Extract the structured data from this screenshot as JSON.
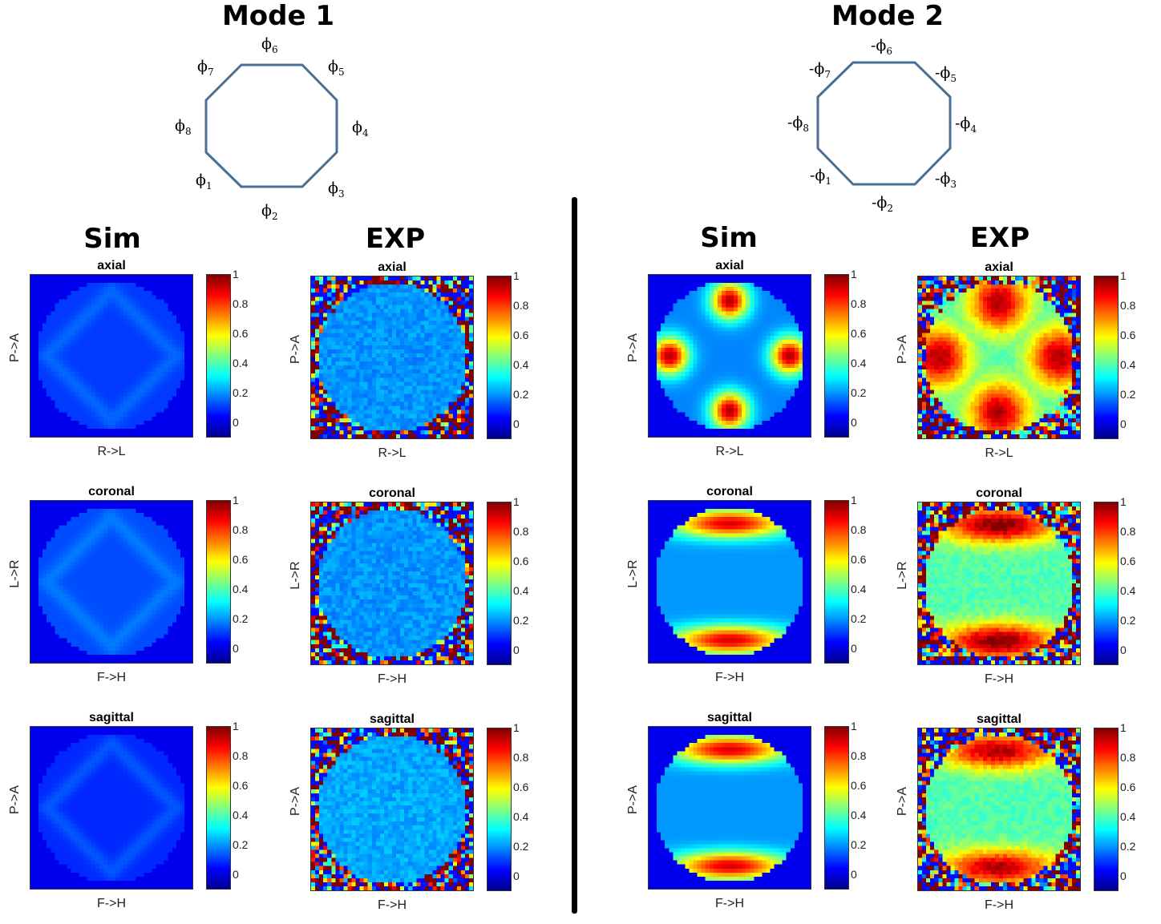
{
  "modes": [
    {
      "title": "Mode 1",
      "octagon_labels": [
        "ϕ6",
        "ϕ5",
        "ϕ4",
        "ϕ3",
        "ϕ2",
        "ϕ1",
        "ϕ8",
        "ϕ7"
      ],
      "sim_title": "Sim",
      "exp_title": "EXP"
    },
    {
      "title": "Mode 2",
      "octagon_labels": [
        "-ϕ6",
        "-ϕ5",
        "-ϕ4",
        "-ϕ3",
        "-ϕ2",
        "-ϕ1",
        "-ϕ8",
        "-ϕ7"
      ],
      "sim_title": "Sim",
      "exp_title": "EXP"
    }
  ],
  "octagon_stroke_color": "#4a6f94",
  "colormap": "jet",
  "chart_data": [
    {
      "type": "heatmap",
      "id": "m1-sim-axial",
      "title": "axial",
      "xlabel": "R->L",
      "ylabel": "P->A",
      "clim": [
        -0.1,
        1
      ],
      "colorbar_ticks": [
        "1",
        "0.8",
        "0.6",
        "0.4",
        "0.2",
        "0"
      ],
      "pattern": "uniform-low",
      "level": 0.1
    },
    {
      "type": "heatmap",
      "id": "m1-exp-axial",
      "title": "axial",
      "xlabel": "R->L",
      "ylabel": "P->A",
      "clim": [
        -0.1,
        1
      ],
      "colorbar_ticks": [
        "1",
        "0.8",
        "0.6",
        "0.4",
        "0.2",
        "0"
      ],
      "pattern": "uniform-noisy",
      "level": 0.2
    },
    {
      "type": "heatmap",
      "id": "m2-sim-axial",
      "title": "axial",
      "xlabel": "R->L",
      "ylabel": "P->A",
      "clim": [
        -0.1,
        1
      ],
      "colorbar_ticks": [
        "1",
        "0.8",
        "0.6",
        "0.4",
        "0.2",
        "0"
      ],
      "pattern": "four-lobes",
      "level": 0.95
    },
    {
      "type": "heatmap",
      "id": "m2-exp-axial",
      "title": "axial",
      "xlabel": "R->L",
      "ylabel": "P->A",
      "clim": [
        -0.1,
        1
      ],
      "colorbar_ticks": [
        "1",
        "0.8",
        "0.6",
        "0.4",
        "0.2",
        "0"
      ],
      "pattern": "four-lobes-noisy",
      "level": 0.95
    },
    {
      "type": "heatmap",
      "id": "m1-sim-coronal",
      "title": "coronal",
      "xlabel": "F->H",
      "ylabel": "L->R",
      "clim": [
        -0.1,
        1
      ],
      "colorbar_ticks": [
        "1",
        "0.8",
        "0.6",
        "0.4",
        "0.2",
        "0"
      ],
      "pattern": "uniform-low",
      "level": 0.12
    },
    {
      "type": "heatmap",
      "id": "m1-exp-coronal",
      "title": "coronal",
      "xlabel": "F->H",
      "ylabel": "L->R",
      "clim": [
        -0.1,
        1
      ],
      "colorbar_ticks": [
        "1",
        "0.8",
        "0.6",
        "0.4",
        "0.2",
        "0"
      ],
      "pattern": "uniform-noisy",
      "level": 0.2
    },
    {
      "type": "heatmap",
      "id": "m2-sim-coronal",
      "title": "coronal",
      "xlabel": "F->H",
      "ylabel": "L->R",
      "clim": [
        -0.1,
        1
      ],
      "colorbar_ticks": [
        "1",
        "0.8",
        "0.6",
        "0.4",
        "0.2",
        "0"
      ],
      "pattern": "two-bands",
      "level": 0.9
    },
    {
      "type": "heatmap",
      "id": "m2-exp-coronal",
      "title": "coronal",
      "xlabel": "F->H",
      "ylabel": "L->R",
      "clim": [
        -0.1,
        1
      ],
      "colorbar_ticks": [
        "1",
        "0.8",
        "0.6",
        "0.4",
        "0.2",
        "0"
      ],
      "pattern": "two-bands-noisy",
      "level": 1.0
    },
    {
      "type": "heatmap",
      "id": "m1-sim-sagittal",
      "title": "sagittal",
      "xlabel": "F->H",
      "ylabel": "P->A",
      "clim": [
        -0.1,
        1
      ],
      "colorbar_ticks": [
        "1",
        "0.8",
        "0.6",
        "0.4",
        "0.2",
        "0"
      ],
      "pattern": "uniform-low",
      "level": 0.08
    },
    {
      "type": "heatmap",
      "id": "m1-exp-sagittal",
      "title": "sagittal",
      "xlabel": "F->H",
      "ylabel": "P->A",
      "clim": [
        -0.1,
        1
      ],
      "colorbar_ticks": [
        "1",
        "0.8",
        "0.6",
        "0.4",
        "0.2",
        "0"
      ],
      "pattern": "uniform-noisy",
      "level": 0.22
    },
    {
      "type": "heatmap",
      "id": "m2-sim-sagittal",
      "title": "sagittal",
      "xlabel": "F->H",
      "ylabel": "P->A",
      "clim": [
        -0.1,
        1
      ],
      "colorbar_ticks": [
        "1",
        "0.8",
        "0.6",
        "0.4",
        "0.2",
        "0"
      ],
      "pattern": "two-bands",
      "level": 0.9
    },
    {
      "type": "heatmap",
      "id": "m2-exp-sagittal",
      "title": "sagittal",
      "xlabel": "F->H",
      "ylabel": "P->A",
      "clim": [
        -0.1,
        1
      ],
      "colorbar_ticks": [
        "1",
        "0.8",
        "0.6",
        "0.4",
        "0.2",
        "0"
      ],
      "pattern": "two-bands-noisy",
      "level": 0.95
    }
  ]
}
